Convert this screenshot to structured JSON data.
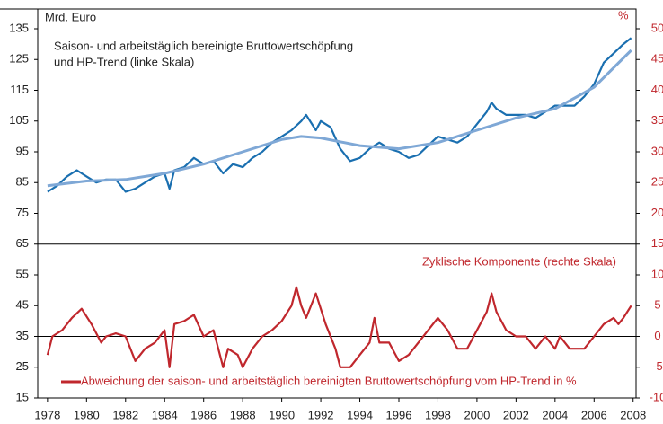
{
  "chart_data": {
    "type": "line",
    "y_label": "Mrd. Euro",
    "y2_label": "%",
    "annotations": [
      "Saison- und arbeitstäglich bereinigte Bruttowertschöpfung",
      "und HP-Trend (linke Skala)",
      "Zyklische Komponente (rechte Skala)"
    ],
    "xlim": [
      1977.5,
      2008.15
    ],
    "xticks": [
      1978,
      1980,
      1982,
      1984,
      1986,
      1988,
      1990,
      1992,
      1994,
      1996,
      1998,
      2000,
      2002,
      2004,
      2006,
      2008
    ],
    "ylim": [
      15,
      135
    ],
    "yticks": [
      15,
      25,
      35,
      45,
      55,
      65,
      75,
      85,
      95,
      105,
      115,
      125,
      135
    ],
    "y2lim": [
      -10,
      50
    ],
    "y2ticks": [
      -10,
      -5,
      0,
      5,
      10,
      15,
      20,
      25,
      30,
      35,
      40,
      45,
      50
    ],
    "hlines": [
      {
        "axis": "y",
        "value": 65
      },
      {
        "axis": "y2",
        "value": 0
      }
    ],
    "series": [
      {
        "color": "#1a6fb0",
        "width": 2.2,
        "x": [
          1978.0,
          1978.5,
          1979.0,
          1979.5,
          1980.0,
          1980.5,
          1981.0,
          1981.5,
          1982.0,
          1982.5,
          1983.0,
          1983.5,
          1984.0,
          1984.25,
          1984.5,
          1985.0,
          1985.5,
          1986.0,
          1986.5,
          1987.0,
          1987.5,
          1988.0,
          1988.5,
          1989.0,
          1989.5,
          1990.0,
          1990.5,
          1991.0,
          1991.25,
          1991.75,
          1992.0,
          1992.5,
          1993.0,
          1993.5,
          1994.0,
          1994.5,
          1995.0,
          1995.5,
          1996.0,
          1996.5,
          1997.0,
          1997.5,
          1998.0,
          1998.5,
          1999.0,
          1999.5,
          2000.0,
          2000.5,
          2000.75,
          2001.0,
          2001.5,
          2002.0,
          2002.5,
          2003.0,
          2003.5,
          2004.0,
          2004.5,
          2005.0,
          2005.5,
          2006.0,
          2006.5,
          2007.0,
          2007.5,
          2007.9
        ],
        "values": [
          82,
          84,
          87,
          89,
          87,
          85,
          86,
          86,
          82,
          83,
          85,
          87,
          88,
          83,
          89,
          90,
          93,
          91,
          92,
          88,
          91,
          90,
          93,
          95,
          98,
          100,
          102,
          105,
          107,
          102,
          105,
          103,
          96,
          92,
          93,
          96,
          98,
          96,
          95,
          93,
          94,
          97,
          100,
          99,
          98,
          100,
          104,
          108,
          111,
          109,
          107,
          107,
          107,
          106,
          108,
          110,
          110,
          110,
          113,
          117,
          124,
          127,
          130,
          132
        ]
      },
      {
        "color": "#7fa8d6",
        "width": 3,
        "x": [
          1978,
          1980,
          1982,
          1984,
          1986,
          1988,
          1990,
          1991,
          1992,
          1994,
          1996,
          1998,
          2000,
          2002,
          2004,
          2006,
          2007.9
        ],
        "values": [
          84,
          85.5,
          86,
          88,
          91,
          95,
          99,
          100,
          99.5,
          97,
          96,
          98,
          102,
          106,
          109,
          116,
          128
        ]
      },
      {
        "name": "Abweichung der saison- und arbeitstäglich bereinigten Bruttowertschöpfung vom HP-Trend in %",
        "color": "#c0272d",
        "width": 2.2,
        "axis": "y2",
        "x": [
          1978.0,
          1978.25,
          1978.75,
          1979.25,
          1979.75,
          1980.25,
          1980.75,
          1981.0,
          1981.5,
          1982.0,
          1982.5,
          1983.0,
          1983.5,
          1984.0,
          1984.25,
          1984.5,
          1985.0,
          1985.5,
          1986.0,
          1986.5,
          1987.0,
          1987.25,
          1987.75,
          1988.0,
          1988.5,
          1989.0,
          1989.5,
          1990.0,
          1990.5,
          1990.75,
          1991.0,
          1991.25,
          1991.75,
          1992.25,
          1992.75,
          1993.0,
          1993.5,
          1994.0,
          1994.5,
          1994.75,
          1995.0,
          1995.5,
          1996.0,
          1996.5,
          1997.0,
          1997.5,
          1998.0,
          1998.5,
          1999.0,
          1999.5,
          2000.0,
          2000.5,
          2000.75,
          2001.0,
          2001.5,
          2002.0,
          2002.5,
          2003.0,
          2003.5,
          2004.0,
          2004.25,
          2004.75,
          2005.0,
          2005.5,
          2006.0,
          2006.5,
          2007.0,
          2007.25,
          2007.5,
          2007.9
        ],
        "values": [
          -3,
          0,
          1,
          3,
          4.5,
          2,
          -1,
          0,
          0.5,
          0,
          -4,
          -2,
          -1,
          1,
          -5,
          2,
          2.5,
          3.5,
          0,
          1,
          -5,
          -2,
          -3,
          -5,
          -2,
          0,
          1,
          2.5,
          5,
          8,
          5,
          3,
          7,
          2,
          -2,
          -5,
          -5,
          -3,
          -1,
          3,
          -1,
          -1,
          -4,
          -3,
          -1,
          1,
          3,
          1,
          -2,
          -2,
          1,
          4,
          7,
          4,
          1,
          0,
          0,
          -2,
          0,
          -2,
          0,
          -2,
          -2,
          -2,
          0,
          2,
          3,
          2,
          3,
          5
        ]
      }
    ]
  }
}
